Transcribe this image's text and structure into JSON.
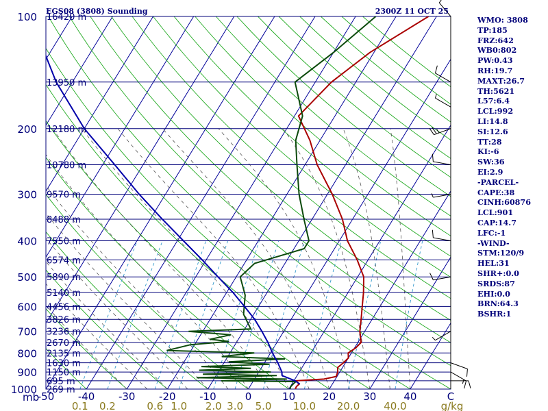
{
  "chart_data": {
    "type": "line",
    "title_left": "EGS08 (3808) Sounding",
    "title_right": "2300Z 11 OCT 25",
    "pressure_axis_label": "mb",
    "pressure_ticks": [
      100,
      200,
      300,
      400,
      500,
      600,
      700,
      800,
      900,
      1000
    ],
    "xlim_temp_c": [
      -50,
      50
    ],
    "temperature_ticks": [
      "-50",
      "-40",
      "-30",
      "-20",
      "-10",
      "0",
      "10",
      "20",
      "30",
      "40",
      "C"
    ],
    "mixing_ratio_ticks": [
      "0.1",
      "0.2",
      "0.6",
      "1.0",
      "2.0",
      "3.0",
      "5.0",
      "10.0",
      "20.0",
      "40.0",
      "g/kg"
    ],
    "height_labels": [
      {
        "p": 100,
        "text": "16420 m"
      },
      {
        "p": 150,
        "text": "13950 m"
      },
      {
        "p": 200,
        "text": "12180 m"
      },
      {
        "p": 250,
        "text": "10780 m"
      },
      {
        "p": 300,
        "text": "9570 m"
      },
      {
        "p": 350,
        "text": "8488 m"
      },
      {
        "p": 400,
        "text": "7550 m"
      },
      {
        "p": 450,
        "text": "6574 m"
      },
      {
        "p": 500,
        "text": "5890 m"
      },
      {
        "p": 550,
        "text": "5140 m"
      },
      {
        "p": 600,
        "text": "4456 m"
      },
      {
        "p": 650,
        "text": "3826 m"
      },
      {
        "p": 700,
        "text": "3236 m"
      },
      {
        "p": 750,
        "text": "2670 m"
      },
      {
        "p": 800,
        "text": "2135 m"
      },
      {
        "p": 850,
        "text": "1630 m"
      },
      {
        "p": 900,
        "text": "1150 m"
      },
      {
        "p": 950,
        "text": "695 m"
      },
      {
        "p": 1000,
        "text": "269 m"
      }
    ],
    "series": [
      {
        "key": "temperature",
        "color": "#aa0000",
        "points": [
          [
            1000,
            11.6
          ],
          [
            985,
            11.5
          ],
          [
            970,
            11.8
          ],
          [
            950,
            10.5
          ],
          [
            940,
            17.2
          ],
          [
            925,
            19.8
          ],
          [
            900,
            19.5
          ],
          [
            875,
            18.8
          ],
          [
            850,
            19.5
          ],
          [
            825,
            20.0
          ],
          [
            800,
            19.2
          ],
          [
            775,
            20.3
          ],
          [
            750,
            20.8
          ],
          [
            700,
            18.8
          ],
          [
            650,
            17.3
          ],
          [
            600,
            15.6
          ],
          [
            550,
            13.8
          ],
          [
            500,
            11.5
          ],
          [
            450,
            7.3
          ],
          [
            400,
            2.0
          ],
          [
            350,
            -2.5
          ],
          [
            300,
            -8.8
          ],
          [
            250,
            -17.0
          ],
          [
            215,
            -22.5
          ],
          [
            185,
            -29.0
          ],
          [
            150,
            -26.0
          ],
          [
            125,
            -21.0
          ],
          [
            100,
            -12.0
          ]
        ]
      },
      {
        "key": "dewpoint",
        "color": "#0c4a0c",
        "points": [
          [
            1000,
            10.3
          ],
          [
            985,
            10.1
          ],
          [
            970,
            10.3
          ],
          [
            955,
            10.6
          ],
          [
            950,
            -8.0
          ],
          [
            940,
            8.0
          ],
          [
            932,
            -14.5
          ],
          [
            920,
            5.0
          ],
          [
            912,
            -13.5
          ],
          [
            900,
            3.0
          ],
          [
            890,
            -15.0
          ],
          [
            880,
            -2.5
          ],
          [
            870,
            -15.0
          ],
          [
            858,
            1.5
          ],
          [
            845,
            -9.0
          ],
          [
            830,
            4.5
          ],
          [
            818,
            -11.5
          ],
          [
            800,
            -4.0
          ],
          [
            788,
            -26.0
          ],
          [
            760,
            -21.0
          ],
          [
            745,
            -12.0
          ],
          [
            735,
            -17.0
          ],
          [
            715,
            -12.5
          ],
          [
            700,
            -23.5
          ],
          [
            690,
            -8.5
          ],
          [
            630,
            -12.5
          ],
          [
            560,
            -15.0
          ],
          [
            500,
            -19.0
          ],
          [
            460,
            -17.5
          ],
          [
            420,
            -7.5
          ],
          [
            400,
            -7.5
          ],
          [
            350,
            -12.0
          ],
          [
            300,
            -17.0
          ],
          [
            250,
            -22.0
          ],
          [
            215,
            -26.0
          ],
          [
            185,
            -28.0
          ],
          [
            150,
            -35.0
          ],
          [
            125,
            -30.0
          ],
          [
            100,
            -25.0
          ]
        ]
      },
      {
        "key": "parcel",
        "color": "#0000aa",
        "points": [
          [
            970,
            12.0
          ],
          [
            950,
            10.3
          ],
          [
            920,
            6.3
          ],
          [
            900,
            5.7
          ],
          [
            850,
            3.3
          ],
          [
            800,
            0.5
          ],
          [
            750,
            -2.2
          ],
          [
            700,
            -5.4
          ],
          [
            650,
            -9.0
          ],
          [
            600,
            -13.5
          ],
          [
            550,
            -18.5
          ],
          [
            500,
            -24.5
          ],
          [
            450,
            -31.0
          ],
          [
            400,
            -38.5
          ],
          [
            350,
            -47.0
          ],
          [
            300,
            -56.5
          ],
          [
            250,
            -67.0
          ],
          [
            200,
            -80.0
          ],
          [
            150,
            -94.0
          ],
          [
            120,
            -103.0
          ]
        ]
      }
    ],
    "wind_barbs": [
      {
        "p": 100,
        "dir": 320,
        "spd": 10
      },
      {
        "p": 150,
        "dir": 300,
        "spd": 10
      },
      {
        "p": 175,
        "dir": 300,
        "spd": 5
      },
      {
        "p": 200,
        "dir": 250,
        "spd": 25
      },
      {
        "p": 250,
        "dir": 280,
        "spd": 10
      },
      {
        "p": 300,
        "dir": 260,
        "spd": 5
      },
      {
        "p": 400,
        "dir": 280,
        "spd": 10
      },
      {
        "p": 500,
        "dir": 260,
        "spd": 10
      },
      {
        "p": 700,
        "dir": 240,
        "spd": 5
      },
      {
        "p": 850,
        "dir": 110,
        "spd": 10
      },
      {
        "p": 900,
        "dir": 120,
        "spd": 15
      },
      {
        "p": 950,
        "dir": 90,
        "spd": 10
      }
    ]
  },
  "indices": [
    "WMO: 3808",
    "TP:185",
    "FRZ:642",
    "WB0:802",
    "PW:0.43",
    "RH:19.7",
    "MAXT:26.7",
    "TH:5621",
    "L57:6.4",
    "LCL:992",
    "LI:14.8",
    "SI:12.6",
    "TT:28",
    "KI:-6",
    "SW:36",
    "EI:2.9",
    "-PARCEL-",
    "CAPE:38",
    "CINH:60876",
    "LCL:901",
    "CAP:14.7",
    "LFC:-1",
    "-WIND-",
    "STM:120/9",
    "HEL:31",
    "SHR+:0.0",
    "SRDS:87",
    "EHI:0.0",
    "BRN:64.3",
    "BSHR:1"
  ],
  "colors": {
    "isobar": "#00007a",
    "isotherm": "#000099",
    "dry_adiabat": "#22aa22",
    "moist_adiabat": "#555555",
    "mixing_ratio": "#3399cc",
    "label_mixing": "#8a7a1e"
  }
}
